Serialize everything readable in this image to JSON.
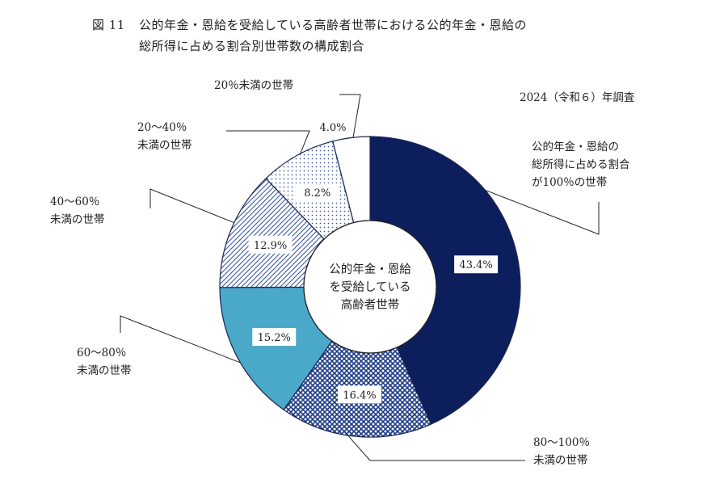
{
  "figure": {
    "number": "図 11",
    "title_line1": "公的年金・恩給を受給している高齢者世帯における公的年金・恩給の",
    "title_line2": "総所得に占める割合別世帯数の構成割合",
    "survey_note": "2024（令和６）年調査"
  },
  "chart_data": {
    "type": "pie",
    "variant": "donut",
    "title": "公的年金・恩給を受給している高齢者世帯における公的年金・恩給の総所得に占める割合別世帯数の構成割合",
    "center_label": [
      "公的年金・恩給",
      "を受給している",
      "高齢者世帯"
    ],
    "slices": [
      {
        "label": [
          "公的年金・恩給の",
          "総所得に占める割合",
          "が100％の世帯"
        ],
        "value": 43.4,
        "value_label": "43.4%",
        "color": "#0c1f5c",
        "pattern": "solid"
      },
      {
        "label": [
          "80～100％",
          "未満の世帯"
        ],
        "value": 16.4,
        "value_label": "16.4%",
        "color": "#1d3a86",
        "pattern": "crosshatch"
      },
      {
        "label": [
          "60～80％",
          "未満の世帯"
        ],
        "value": 15.2,
        "value_label": "15.2%",
        "color": "#4aa8c8",
        "pattern": "solid"
      },
      {
        "label": [
          "40～60％",
          "未満の世帯"
        ],
        "value": 12.9,
        "value_label": "12.9%",
        "color": "#3c57a0",
        "pattern": "diagonal"
      },
      {
        "label": [
          "20～40％",
          "未満の世帯"
        ],
        "value": 8.2,
        "value_label": "8.2%",
        "color": "#3c57a0",
        "pattern": "dots"
      },
      {
        "label": [
          "20％未満の世帯"
        ],
        "value": 4.0,
        "value_label": "4.0%",
        "color": "#ffffff",
        "pattern": "none"
      }
    ],
    "start": "12 o'clock",
    "direction": "clockwise",
    "legend": "none"
  }
}
